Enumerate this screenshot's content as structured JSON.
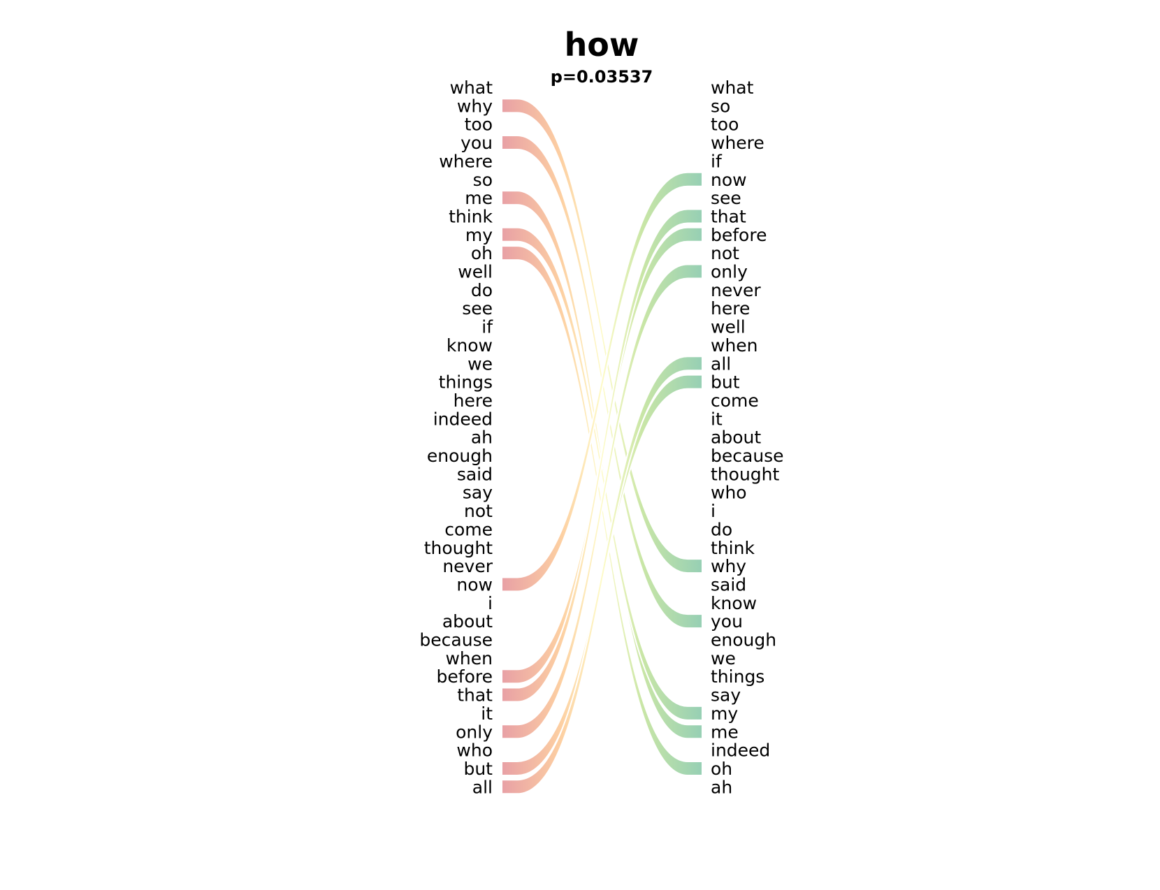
{
  "chart_data": {
    "type": "bump",
    "title": "how",
    "subtitle": "p=0.03537",
    "left_words": [
      "what",
      "why",
      "too",
      "you",
      "where",
      "so",
      "me",
      "think",
      "my",
      "oh",
      "well",
      "do",
      "see",
      "if",
      "know",
      "we",
      "things",
      "here",
      "indeed",
      "ah",
      "enough",
      "said",
      "say",
      "not",
      "come",
      "thought",
      "never",
      "now",
      "i",
      "about",
      "because",
      "when",
      "before",
      "that",
      "it",
      "only",
      "who",
      "but",
      "all"
    ],
    "right_words": [
      "what",
      "so",
      "too",
      "where",
      "if",
      "now",
      "see",
      "that",
      "before",
      "not",
      "only",
      "never",
      "here",
      "well",
      "when",
      "all",
      "but",
      "come",
      "it",
      "about",
      "because",
      "thought",
      "who",
      "i",
      "do",
      "think",
      "why",
      "said",
      "know",
      "you",
      "enough",
      "we",
      "things",
      "say",
      "my",
      "me",
      "indeed",
      "oh",
      "ah"
    ],
    "links": [
      {
        "word": "why",
        "left_rank": 2,
        "right_rank": 27
      },
      {
        "word": "you",
        "left_rank": 4,
        "right_rank": 30
      },
      {
        "word": "me",
        "left_rank": 7,
        "right_rank": 36
      },
      {
        "word": "my",
        "left_rank": 9,
        "right_rank": 35
      },
      {
        "word": "oh",
        "left_rank": 10,
        "right_rank": 38
      },
      {
        "word": "now",
        "left_rank": 28,
        "right_rank": 6
      },
      {
        "word": "before",
        "left_rank": 33,
        "right_rank": 9
      },
      {
        "word": "that",
        "left_rank": 34,
        "right_rank": 8
      },
      {
        "word": "only",
        "left_rank": 36,
        "right_rank": 11
      },
      {
        "word": "but",
        "left_rank": 38,
        "right_rank": 17
      },
      {
        "word": "all",
        "left_rank": 39,
        "right_rank": 16
      }
    ],
    "colors": {
      "left_start": "#e8a0a5",
      "mid_left": "#fdd0a2",
      "middle": "#fefbc8",
      "mid_right": "#c9e6a6",
      "right_end": "#96cfb4"
    }
  }
}
